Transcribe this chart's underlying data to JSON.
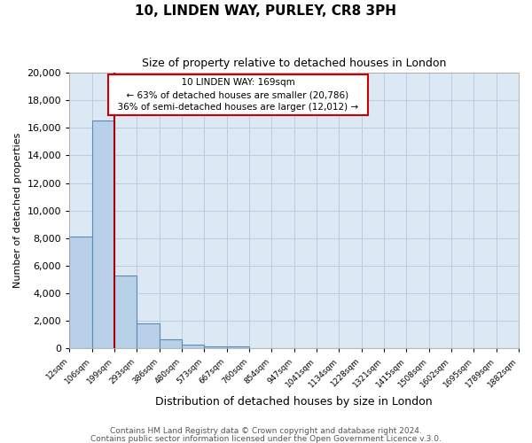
{
  "title": "10, LINDEN WAY, PURLEY, CR8 3PH",
  "subtitle": "Size of property relative to detached houses in London",
  "xlabel": "Distribution of detached houses by size in London",
  "ylabel": "Number of detached properties",
  "bar_labels": [
    "12sqm",
    "106sqm",
    "199sqm",
    "293sqm",
    "386sqm",
    "480sqm",
    "573sqm",
    "667sqm",
    "760sqm",
    "854sqm",
    "947sqm",
    "1041sqm",
    "1134sqm",
    "1228sqm",
    "1321sqm",
    "1415sqm",
    "1508sqm",
    "1602sqm",
    "1695sqm",
    "1789sqm",
    "1882sqm"
  ],
  "bar_values": [
    8100,
    16500,
    5300,
    1800,
    700,
    300,
    150,
    150,
    0,
    0,
    0,
    0,
    0,
    0,
    0,
    0,
    0,
    0,
    0,
    0
  ],
  "annotation_line1": "10 LINDEN WAY: 169sqm",
  "annotation_line2": "← 63% of detached houses are smaller (20,786)",
  "annotation_line3": "36% of semi-detached houses are larger (12,012) →",
  "bar_color": "#b8d0e8",
  "bar_edge_color": "#5a8ab8",
  "red_line_color": "#aa0000",
  "annotation_box_facecolor": "#ffffff",
  "annotation_box_edgecolor": "#cc0000",
  "plot_bg_color": "#dce8f4",
  "fig_bg_color": "#ffffff",
  "grid_color": "#b8cfe0",
  "ylim": [
    0,
    20000
  ],
  "yticks": [
    0,
    2000,
    4000,
    6000,
    8000,
    10000,
    12000,
    14000,
    16000,
    18000,
    20000
  ],
  "footer_line1": "Contains HM Land Registry data © Crown copyright and database right 2024.",
  "footer_line2": "Contains public sector information licensed under the Open Government Licence v.3.0."
}
